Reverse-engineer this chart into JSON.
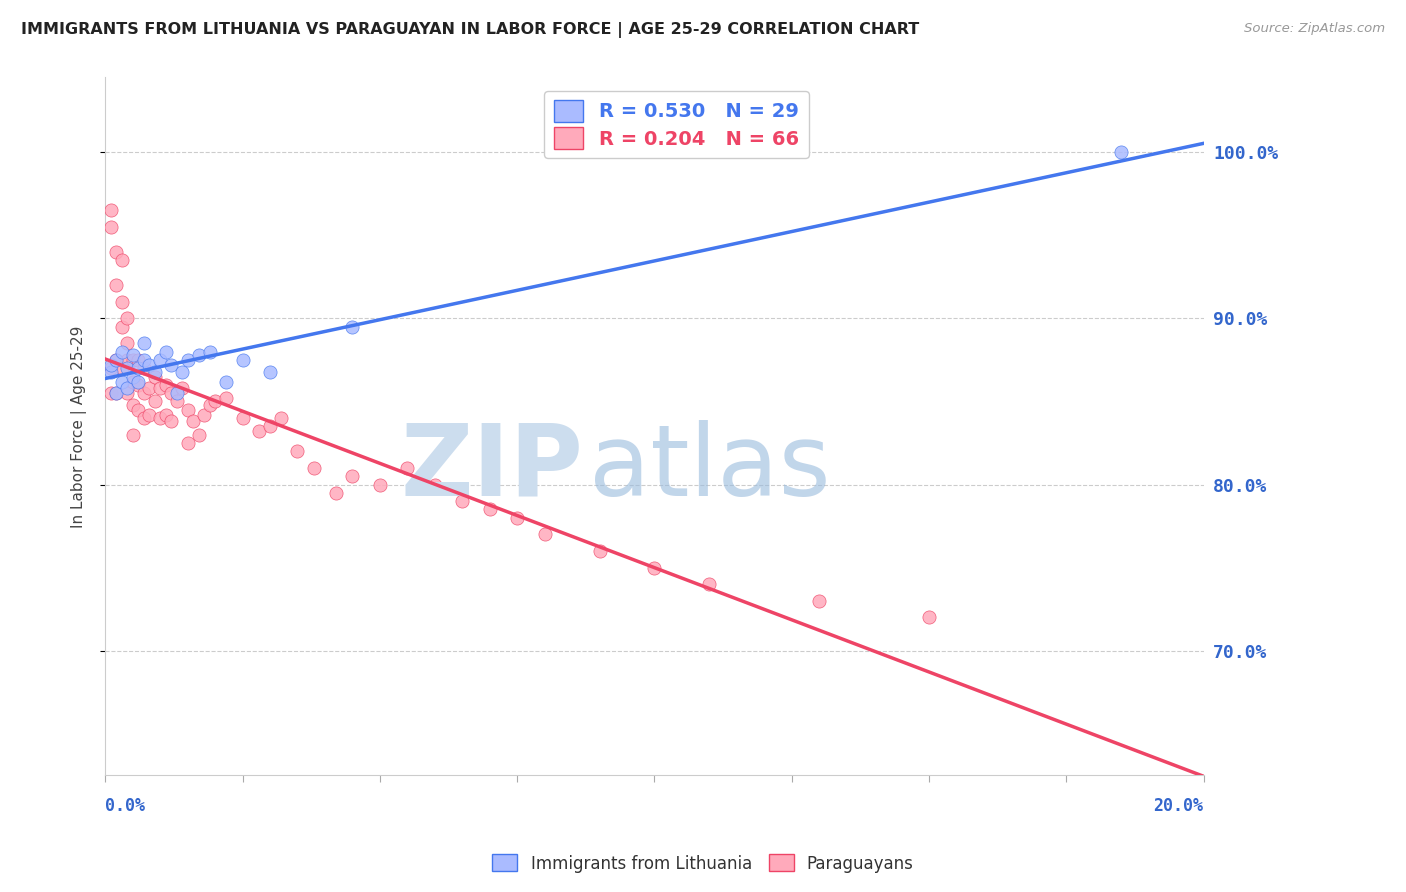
{
  "title": "IMMIGRANTS FROM LITHUANIA VS PARAGUAYAN IN LABOR FORCE | AGE 25-29 CORRELATION CHART",
  "source": "Source: ZipAtlas.com",
  "ylabel": "In Labor Force | Age 25-29",
  "ytick_labels": [
    "100.0%",
    "90.0%",
    "80.0%",
    "70.0%"
  ],
  "ytick_values": [
    1.0,
    0.9,
    0.8,
    0.7
  ],
  "xlim": [
    0.0,
    0.2
  ],
  "ylim": [
    0.625,
    1.045
  ],
  "legend_entries": [
    {
      "label": "R = 0.530   N = 29",
      "color": "#4477ee"
    },
    {
      "label": "R = 0.204   N = 66",
      "color": "#ee4466"
    }
  ],
  "legend_label_lithuania": "Immigrants from Lithuania",
  "legend_label_paraguayan": "Paraguayans",
  "color_lithuania": "#aabbff",
  "color_paraguayan": "#ffaabb",
  "color_title": "#222222",
  "color_source": "#999999",
  "color_yaxis_right": "#3366cc",
  "color_trend_lithuania": "#4477ee",
  "color_trend_paraguayan": "#ee4466",
  "color_trend_dashed": "#ccbbbb",
  "watermark_zip": "#ccddee",
  "watermark_atlas": "#99bbdd",
  "lithuania_x": [
    0.001,
    0.001,
    0.002,
    0.002,
    0.003,
    0.003,
    0.004,
    0.004,
    0.005,
    0.005,
    0.006,
    0.006,
    0.007,
    0.007,
    0.008,
    0.009,
    0.01,
    0.011,
    0.012,
    0.013,
    0.014,
    0.015,
    0.017,
    0.019,
    0.022,
    0.025,
    0.03,
    0.045,
    0.185
  ],
  "lithuania_y": [
    0.868,
    0.872,
    0.875,
    0.855,
    0.88,
    0.862,
    0.87,
    0.858,
    0.865,
    0.878,
    0.87,
    0.862,
    0.885,
    0.875,
    0.872,
    0.868,
    0.875,
    0.88,
    0.872,
    0.855,
    0.868,
    0.875,
    0.878,
    0.88,
    0.862,
    0.875,
    0.868,
    0.895,
    1.0
  ],
  "paraguayan_x": [
    0.001,
    0.001,
    0.001,
    0.001,
    0.002,
    0.002,
    0.002,
    0.002,
    0.003,
    0.003,
    0.003,
    0.003,
    0.004,
    0.004,
    0.004,
    0.004,
    0.005,
    0.005,
    0.005,
    0.005,
    0.006,
    0.006,
    0.006,
    0.007,
    0.007,
    0.007,
    0.008,
    0.008,
    0.009,
    0.009,
    0.01,
    0.01,
    0.011,
    0.011,
    0.012,
    0.012,
    0.013,
    0.014,
    0.015,
    0.015,
    0.016,
    0.017,
    0.018,
    0.019,
    0.02,
    0.022,
    0.025,
    0.028,
    0.03,
    0.032,
    0.035,
    0.038,
    0.042,
    0.045,
    0.05,
    0.055,
    0.06,
    0.065,
    0.07,
    0.075,
    0.08,
    0.09,
    0.1,
    0.11,
    0.13,
    0.15
  ],
  "paraguayan_y": [
    0.955,
    0.965,
    0.87,
    0.855,
    0.94,
    0.92,
    0.875,
    0.855,
    0.935,
    0.91,
    0.895,
    0.87,
    0.9,
    0.885,
    0.875,
    0.855,
    0.875,
    0.862,
    0.848,
    0.83,
    0.875,
    0.86,
    0.845,
    0.87,
    0.855,
    0.84,
    0.858,
    0.842,
    0.865,
    0.85,
    0.858,
    0.84,
    0.86,
    0.842,
    0.855,
    0.838,
    0.85,
    0.858,
    0.845,
    0.825,
    0.838,
    0.83,
    0.842,
    0.848,
    0.85,
    0.852,
    0.84,
    0.832,
    0.835,
    0.84,
    0.82,
    0.81,
    0.795,
    0.805,
    0.8,
    0.81,
    0.8,
    0.79,
    0.785,
    0.78,
    0.77,
    0.76,
    0.75,
    0.74,
    0.73,
    0.72
  ]
}
